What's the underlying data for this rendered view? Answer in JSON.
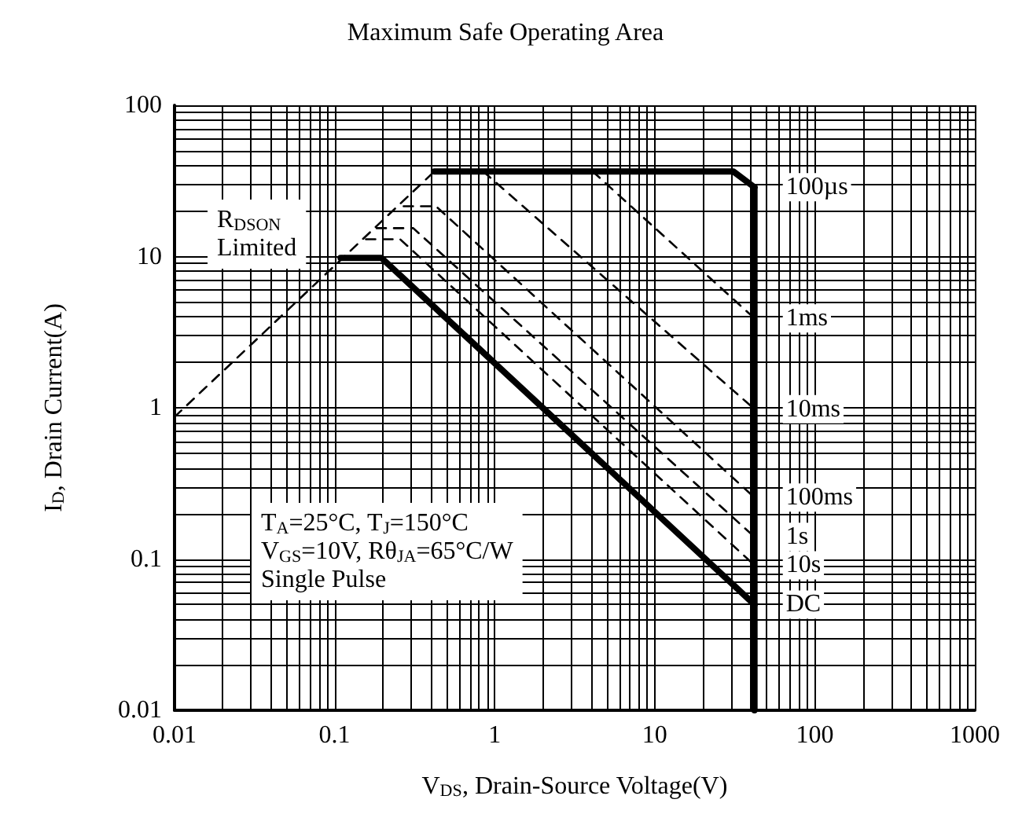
{
  "chart_data": {
    "type": "line",
    "title": "Maximum Safe Operating Area",
    "xlabel": "V$_{DS}$, Drain-Source Voltage(V)",
    "ylabel": "I$_{D}$, Drain Current(A)",
    "xlim": [
      0.01,
      1000
    ],
    "ylim": [
      0.01,
      100
    ],
    "xticks": [
      0.01,
      0.1,
      1,
      10,
      100,
      1000
    ],
    "yticks": [
      0.01,
      0.1,
      1,
      10,
      100
    ],
    "log": "xy",
    "grid": true,
    "legend": false,
    "marker": "none",
    "series": [
      {
        "color": "#000000",
        "line_style": "dashed",
        "x": [
          0.01,
          0.42
        ],
        "values": [
          0.87,
          36.5
        ]
      },
      {
        "name": "100µs",
        "color": "#000000",
        "line_style": "solid",
        "x": [
          0.42,
          31,
          42
        ],
        "values": [
          36.5,
          36.5,
          28.7
        ]
      },
      {
        "color": "#000000",
        "line_style": "solid",
        "x": [
          42,
          42
        ],
        "values": [
          28.7,
          0.01
        ]
      },
      {
        "name": "1ms",
        "color": "#000000",
        "line_style": "dashed",
        "x": [
          4.1,
          42
        ],
        "values": [
          36.5,
          3.9
        ]
      },
      {
        "name": "10ms",
        "color": "#000000",
        "line_style": "dashed",
        "x": [
          0.85,
          42
        ],
        "values": [
          36.5,
          0.98
        ]
      },
      {
        "name": "100ms",
        "color": "#000000",
        "line_style": "dashed",
        "x": [
          0.27,
          0.43,
          42
        ],
        "values": [
          21.5,
          21.5,
          0.255
        ]
      },
      {
        "name": "1s",
        "color": "#000000",
        "line_style": "dashed",
        "x": [
          0.183,
          0.31,
          42
        ],
        "values": [
          15.4,
          15.4,
          0.14
        ]
      },
      {
        "name": "10s",
        "color": "#000000",
        "line_style": "dashed",
        "x": [
          0.157,
          0.257,
          42
        ],
        "values": [
          13,
          13,
          0.091
        ]
      },
      {
        "name": "DC",
        "color": "#000000",
        "line_style": "solid",
        "x": [
          0.109,
          0.196,
          42
        ],
        "values": [
          9.8,
          9.8,
          0.05
        ]
      }
    ],
    "annotations": [
      "R$_{DSON}$\nLimited",
      "T$_{A}$=25°C, T$_{J}$=150°C\nV$_{GS}$=10V, Rθ$_{JA}$=65°C/W\nSingle Pulse"
    ]
  }
}
